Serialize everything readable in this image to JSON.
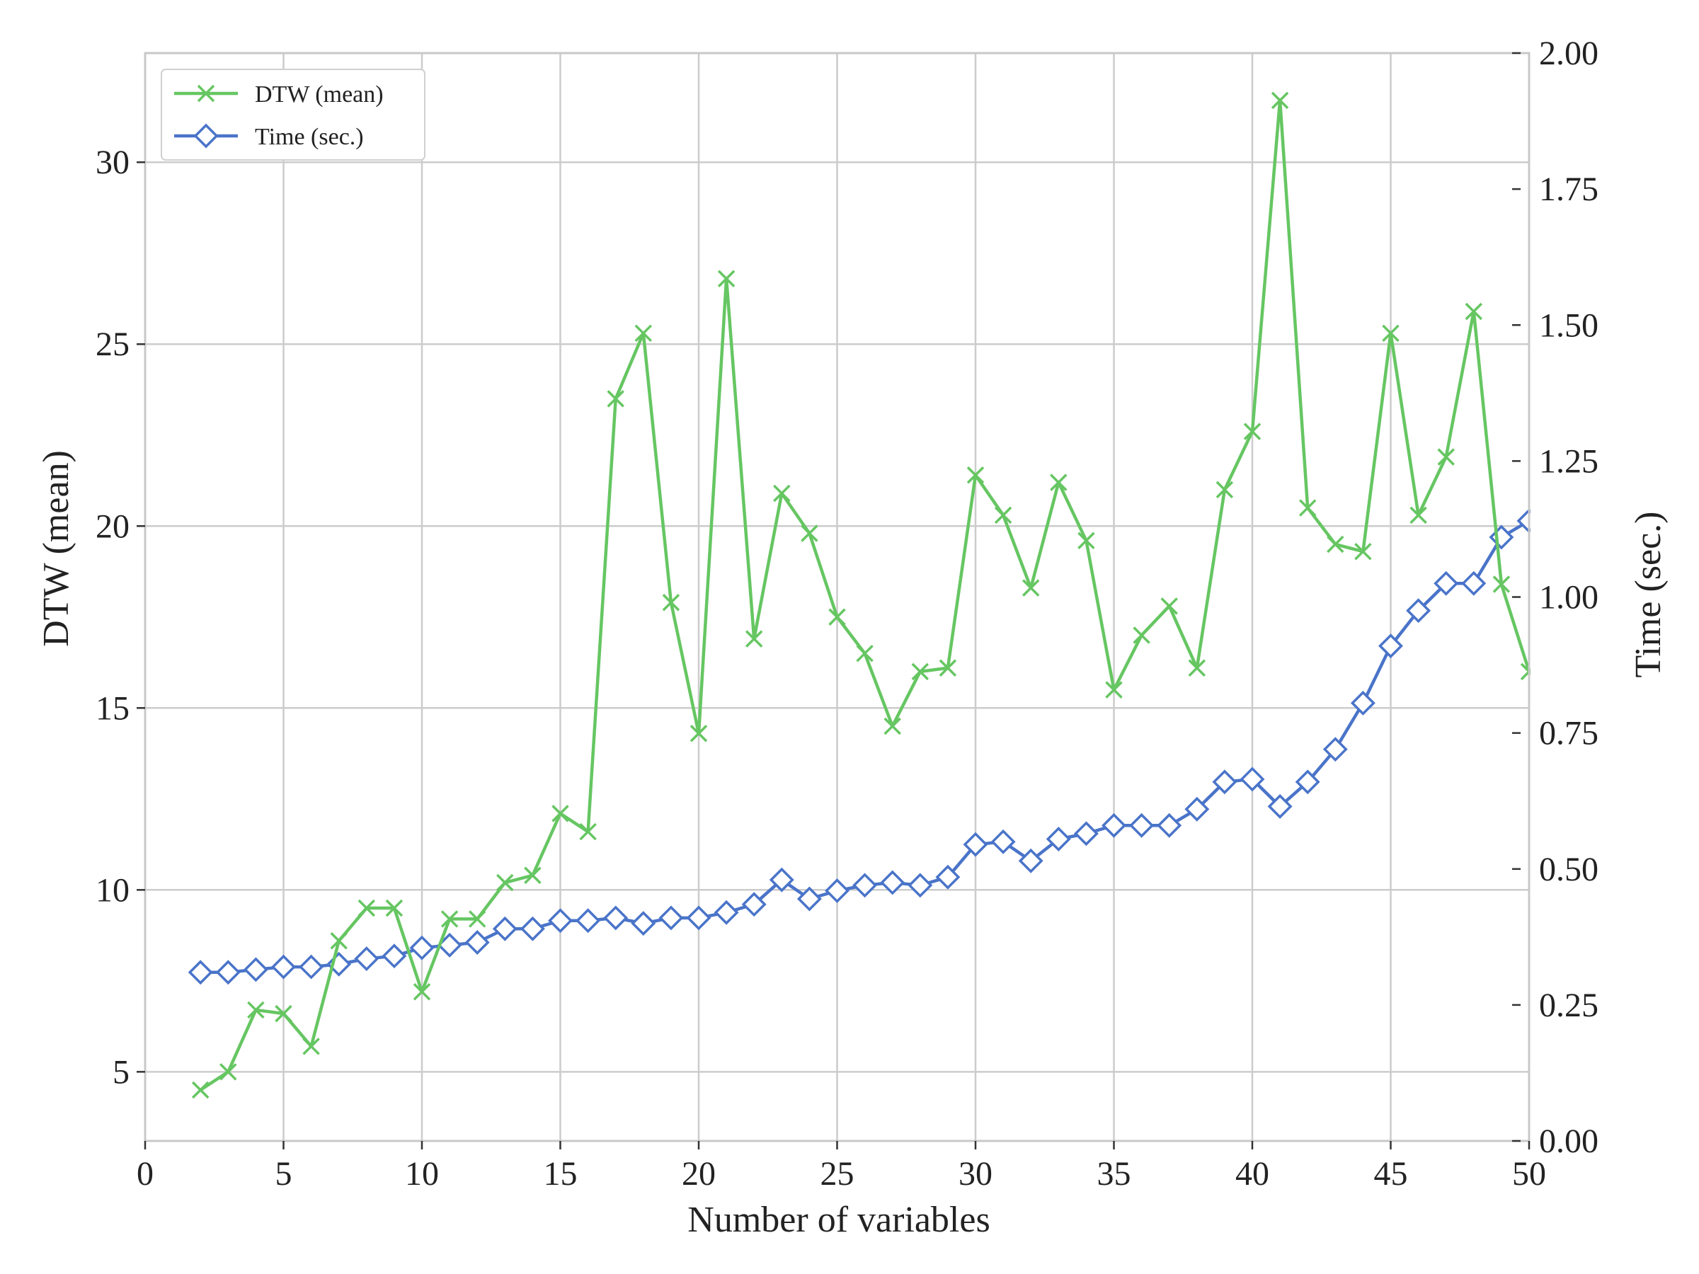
{
  "chart_data": {
    "type": "line",
    "xlabel": "Number of variables",
    "ylabel": "DTW (mean)",
    "y2label": "Time (sec.)",
    "xlim": [
      0,
      50
    ],
    "ylim": [
      3.1,
      33.0
    ],
    "y2lim": [
      0.0,
      2.0
    ],
    "x_ticks": [
      "0",
      "5",
      "10",
      "15",
      "20",
      "25",
      "30",
      "35",
      "40",
      "45",
      "50"
    ],
    "y_ticks": [
      "5",
      "10",
      "15",
      "20",
      "25",
      "30"
    ],
    "y2_ticks": [
      "0.00",
      "0.25",
      "0.50",
      "0.75",
      "1.00",
      "1.25",
      "1.50",
      "1.75",
      "2.00"
    ],
    "grid": true,
    "legend_position": "top-left",
    "x": [
      2,
      3,
      4,
      5,
      6,
      7,
      8,
      9,
      10,
      11,
      12,
      13,
      14,
      15,
      16,
      17,
      18,
      19,
      20,
      21,
      22,
      23,
      24,
      25,
      26,
      27,
      28,
      29,
      30,
      31,
      32,
      33,
      34,
      35,
      36,
      37,
      38,
      39,
      40,
      41,
      42,
      43,
      44,
      45,
      46,
      47,
      48,
      49,
      50
    ],
    "series": [
      {
        "name": "DTW (mean)",
        "axis": "left",
        "color": "#66c662",
        "marker": "x",
        "values": [
          4.5,
          5.0,
          6.7,
          6.6,
          5.7,
          8.6,
          9.5,
          9.5,
          7.2,
          9.2,
          9.2,
          10.2,
          10.4,
          12.1,
          11.6,
          23.5,
          25.3,
          17.9,
          14.3,
          26.8,
          16.9,
          20.9,
          19.8,
          17.5,
          16.5,
          14.5,
          16.0,
          16.1,
          21.4,
          20.3,
          18.3,
          21.2,
          19.6,
          15.5,
          17.0,
          17.8,
          16.1,
          21.0,
          22.6,
          31.7,
          20.5,
          19.5,
          19.3,
          25.3,
          20.3,
          21.9,
          25.9,
          18.4,
          16.0
        ]
      },
      {
        "name": "Time (sec.)",
        "axis": "right",
        "color": "#4a74c9",
        "marker": "diamond",
        "values": [
          0.31,
          0.31,
          0.315,
          0.32,
          0.32,
          0.325,
          0.335,
          0.34,
          0.355,
          0.36,
          0.365,
          0.39,
          0.39,
          0.405,
          0.405,
          0.41,
          0.4,
          0.41,
          0.41,
          0.42,
          0.435,
          0.48,
          0.445,
          0.46,
          0.47,
          0.475,
          0.47,
          0.485,
          0.545,
          0.55,
          0.515,
          0.555,
          0.565,
          0.58,
          0.58,
          0.58,
          0.61,
          0.66,
          0.665,
          0.615,
          0.66,
          0.72,
          0.805,
          0.91,
          0.975,
          1.025,
          1.025,
          1.11,
          1.14
        ]
      }
    ]
  }
}
